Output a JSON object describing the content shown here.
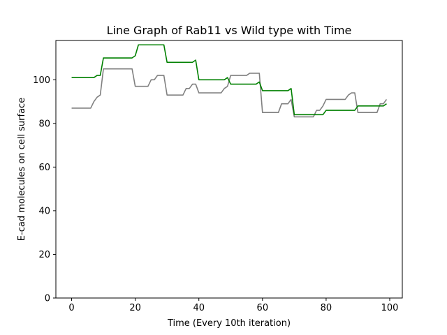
{
  "chart_data": {
    "type": "line",
    "title": "Line Graph of Rab11 vs Wild type with Time",
    "xlabel": "Time (Every 10th iteration)",
    "ylabel": "E-cad molecules on cell surface",
    "xlim": [
      -4.95,
      103.95
    ],
    "ylim": [
      0,
      118
    ],
    "xticks": [
      0,
      20,
      40,
      60,
      80,
      100
    ],
    "yticks": [
      0,
      20,
      40,
      60,
      80,
      100
    ],
    "grid": false,
    "legend": "none",
    "series": [
      {
        "color": "#808080",
        "x": [
          0,
          6,
          7,
          8,
          9,
          10,
          19,
          20,
          24,
          25,
          26,
          27,
          28,
          29,
          30,
          35,
          36,
          37,
          38,
          39,
          40,
          47,
          48,
          49,
          50,
          55,
          56,
          59,
          60,
          65,
          66,
          68,
          69,
          70,
          76,
          77,
          78,
          79,
          80,
          86,
          87,
          88,
          89,
          90,
          96,
          97,
          98,
          99
        ],
        "y": [
          87,
          87,
          90,
          92,
          93,
          105,
          105,
          97,
          97,
          100,
          100,
          102,
          102,
          102,
          93,
          93,
          96,
          96,
          98,
          98,
          94,
          94,
          96,
          97,
          102,
          102,
          103,
          103,
          85,
          85,
          89,
          89,
          91,
          83,
          83,
          86,
          86,
          88,
          91,
          91,
          93,
          94,
          94,
          85,
          85,
          89,
          89,
          91
        ]
      },
      {
        "color": "#008000",
        "x": [
          0,
          7,
          8,
          9,
          10,
          19,
          20,
          21,
          29,
          30,
          38,
          39,
          40,
          48,
          49,
          50,
          58,
          59,
          60,
          68,
          69,
          70,
          79,
          80,
          89,
          90,
          98,
          99
        ],
        "y": [
          101,
          101,
          102,
          102,
          110,
          110,
          111,
          116,
          116,
          108,
          108,
          109,
          100,
          100,
          101,
          98,
          98,
          99,
          95,
          95,
          96,
          84,
          84,
          86,
          86,
          88,
          88,
          89
        ]
      }
    ]
  }
}
